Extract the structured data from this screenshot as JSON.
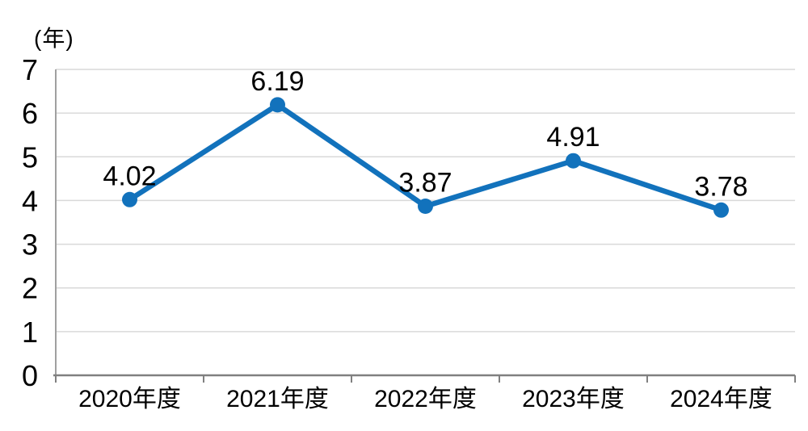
{
  "chart_data": {
    "type": "line",
    "title": "",
    "unit_label": "(年)",
    "categories": [
      "2020年度",
      "2021年度",
      "2022年度",
      "2023年度",
      "2024年度"
    ],
    "series": [
      {
        "name": "years",
        "values": [
          4.02,
          6.19,
          3.87,
          4.91,
          3.78
        ],
        "data_labels": [
          "4.02",
          "6.19",
          "3.87",
          "4.91",
          "3.78"
        ]
      }
    ],
    "y_axis": {
      "min": 0,
      "max": 7,
      "tick_interval": 1,
      "tick_labels": [
        "0",
        "1",
        "2",
        "3",
        "4",
        "5",
        "6",
        "7"
      ]
    },
    "grid": true,
    "legend_position": "none",
    "colors": {
      "line": "#1272BC",
      "marker": "#1272BC",
      "gridline": "#D9D9D9",
      "axis_bottom": "#808080",
      "axis_left": "#A0A0A0",
      "tick": "#808080",
      "text": "#000000",
      "background": "#FFFFFF"
    }
  }
}
